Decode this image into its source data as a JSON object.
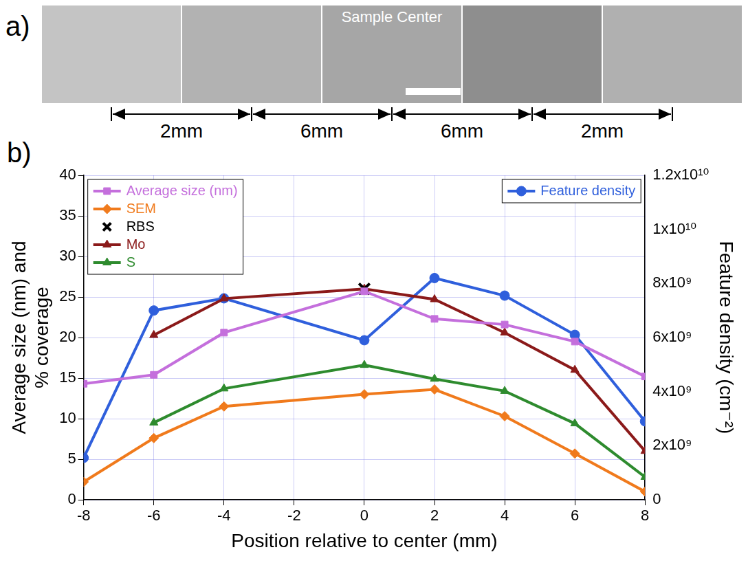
{
  "panel_a": {
    "letter": "a)",
    "label": "Sample Center",
    "spans": [
      "2mm",
      "6mm",
      "6mm",
      "2mm"
    ]
  },
  "chart_data": {
    "letter": "b)",
    "type": "line",
    "x_label": "Position relative to center (mm)",
    "y_label": [
      "Average size (nm) and",
      "% coverage"
    ],
    "y2_label": "Feature density (cm⁻²)",
    "x": [
      -8,
      -6,
      -4,
      0,
      2,
      4,
      6,
      8
    ],
    "series": [
      {
        "name": "Average size (nm)",
        "color": "#c46fdc",
        "marker": "square",
        "line_style": "solid",
        "values": [
          14.3,
          15.4,
          20.6,
          25.7,
          22.3,
          21.6,
          19.5,
          15.2
        ]
      },
      {
        "name": "SEM",
        "color": "#f07a1c",
        "marker": "diamond",
        "line_style": "solid",
        "values": [
          2.2,
          7.6,
          11.5,
          13.0,
          13.6,
          10.3,
          5.7,
          1.0
        ]
      },
      {
        "name": "RBS",
        "color": "#000000",
        "marker": "cross",
        "line_style": "none",
        "values": [
          null,
          null,
          null,
          26.0,
          null,
          null,
          null,
          null
        ]
      },
      {
        "name": "Mo",
        "color": "#8b1a1a",
        "marker": "triangle",
        "line_style": "solid",
        "values": [
          null,
          20.3,
          24.8,
          26.0,
          24.7,
          20.6,
          16.0,
          6.0
        ]
      },
      {
        "name": "S",
        "color": "#2e8b2e",
        "marker": "triangle",
        "line_style": "solid",
        "values": [
          null,
          9.5,
          13.7,
          16.6,
          14.9,
          13.4,
          9.4,
          2.8
        ]
      },
      {
        "name": "Feature density",
        "color": "#2f5fdc",
        "marker": "circle",
        "line_style": "solid",
        "axis": "y2",
        "values": [
          1550000000,
          7000000000,
          7450000000,
          5900000000,
          8200000000,
          7550000000,
          6100000000,
          2900000000
        ]
      }
    ],
    "xlim": [
      -8,
      8
    ],
    "xticks": [
      -8,
      -6,
      -4,
      -2,
      0,
      2,
      4,
      6,
      8
    ],
    "ylim": [
      0,
      40
    ],
    "yticks": [
      0,
      5,
      10,
      15,
      20,
      25,
      30,
      35,
      40
    ],
    "y2lim": [
      0,
      12000000000
    ],
    "y2ticks": [
      0,
      {
        "value": 2000000000,
        "label": "2x10⁹"
      },
      {
        "value": 4000000000,
        "label": "4x10⁹"
      },
      {
        "value": 6000000000,
        "label": "6x10⁹"
      },
      {
        "value": 8000000000,
        "label": "8x10⁹"
      },
      {
        "value": 10000000000,
        "label": "1x10¹⁰"
      },
      {
        "value": 12000000000,
        "label": "1.2x10¹⁰"
      }
    ],
    "grid": true,
    "legend": "upper left"
  }
}
